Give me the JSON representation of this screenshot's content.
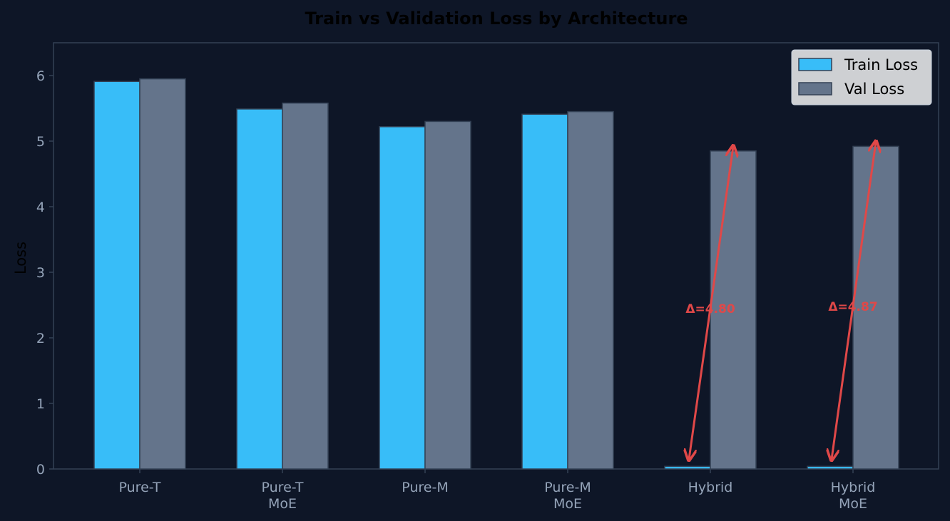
{
  "chart_data": {
    "type": "bar",
    "title": "Train vs Validation Loss by Architecture",
    "xlabel": "",
    "ylabel": "Loss",
    "ylim": [
      0,
      6.5
    ],
    "yticks": [
      0,
      1,
      2,
      3,
      4,
      5,
      6
    ],
    "categories": [
      [
        "Pure-T"
      ],
      [
        "Pure-T",
        "MoE"
      ],
      [
        "Pure-M"
      ],
      [
        "Pure-M",
        "MoE"
      ],
      [
        "Hybrid"
      ],
      [
        "Hybrid",
        "MoE"
      ]
    ],
    "series": [
      {
        "name": "Train Loss",
        "color": "#38bdf8",
        "values": [
          5.91,
          5.49,
          5.22,
          5.41,
          0.04,
          0.04
        ]
      },
      {
        "name": "Val Loss",
        "color": "#64748b",
        "values": [
          5.95,
          5.58,
          5.3,
          5.45,
          4.85,
          4.92
        ]
      }
    ],
    "legend_position": "top-right",
    "grid": false,
    "annotations": [
      {
        "category_index": 4,
        "text": "Δ=4.80",
        "from": 0.04,
        "to": 4.85
      },
      {
        "category_index": 5,
        "text": "Δ=4.87",
        "from": 0.04,
        "to": 4.92
      }
    ],
    "colors": {
      "background": "#0e1627",
      "axis": "#334155",
      "tick_text": "#94a3b8",
      "annotation": "#e04848"
    }
  }
}
